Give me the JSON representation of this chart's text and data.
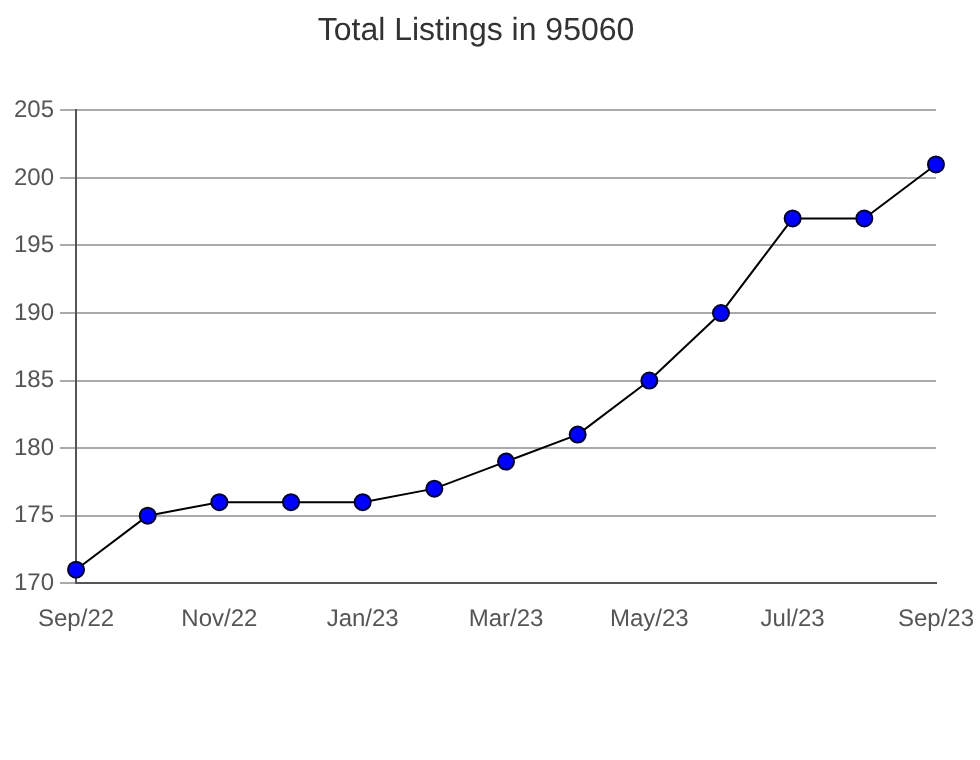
{
  "chart_data": {
    "type": "line",
    "title": "Total Listings in 95060",
    "categories": [
      "Sep/22",
      null,
      "Nov/22",
      null,
      "Jan/23",
      null,
      "Mar/23",
      null,
      "May/23",
      null,
      "Jul/23",
      null,
      "Sep/23"
    ],
    "series": [
      {
        "color": "#0000ff",
        "values": [
          171,
          175,
          176,
          176,
          176,
          177,
          179,
          181,
          185,
          190,
          197,
          197,
          201
        ]
      }
    ],
    "ylim": [
      170,
      205
    ],
    "yticks": [
      170,
      175,
      180,
      185,
      190,
      195,
      200,
      205
    ],
    "grid": "y",
    "legend": false,
    "marker": "circle",
    "line_style": "solid"
  }
}
